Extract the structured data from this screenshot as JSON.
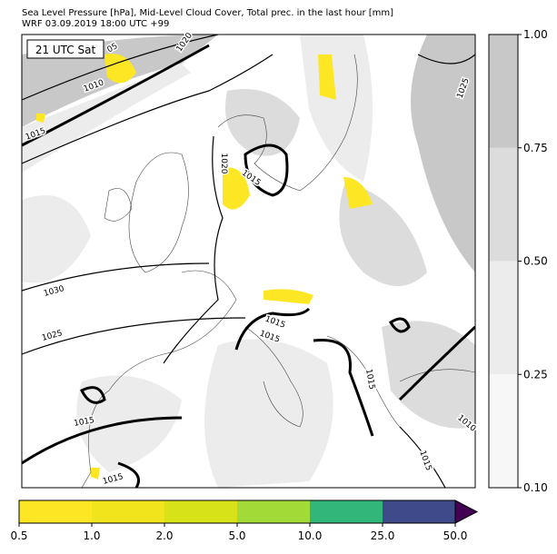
{
  "map": {
    "title": "Sea Level Pressure [hPa], Mid-Level Cloud Cover, Total prec. in the last hour [mm]",
    "subtitle": "WRF 03.09.2019 18:00 UTC +99",
    "time_label": "21 UTC Sat",
    "isobar_labels": [
      "05",
      "1020",
      "1010",
      "1015",
      "1020",
      "1015",
      "1025",
      "1030",
      "1025",
      "1015",
      "1015",
      "1015",
      "1015",
      "1010",
      "1015",
      "1015"
    ],
    "cloud_colorbar": {
      "colors": [
        "#f7f7f7",
        "#ececec",
        "#dcdcdc",
        "#c8c8c8"
      ],
      "ticks": [
        {
          "value": 0.1,
          "label": "0.10"
        },
        {
          "value": 0.25,
          "label": "0.25"
        },
        {
          "value": 0.5,
          "label": "0.50"
        },
        {
          "value": 0.75,
          "label": "0.75"
        },
        {
          "value": 1,
          "label": "1.00"
        }
      ]
    },
    "precip_colorbar": {
      "colors": [
        "#fde725",
        "#f0e51c",
        "#d8e219",
        "#a2da37",
        "#32b67a",
        "#3e4a89"
      ],
      "extend_color": "#440154",
      "ticks": [
        {
          "value": 0.5,
          "label": "0.5"
        },
        {
          "value": 1,
          "label": "1.0"
        },
        {
          "value": 2,
          "label": "2.0"
        },
        {
          "value": 5,
          "label": "5.0"
        },
        {
          "value": 10,
          "label": "10.0"
        },
        {
          "value": 25,
          "label": "25.0"
        },
        {
          "value": 50,
          "label": "50.0"
        }
      ]
    }
  }
}
